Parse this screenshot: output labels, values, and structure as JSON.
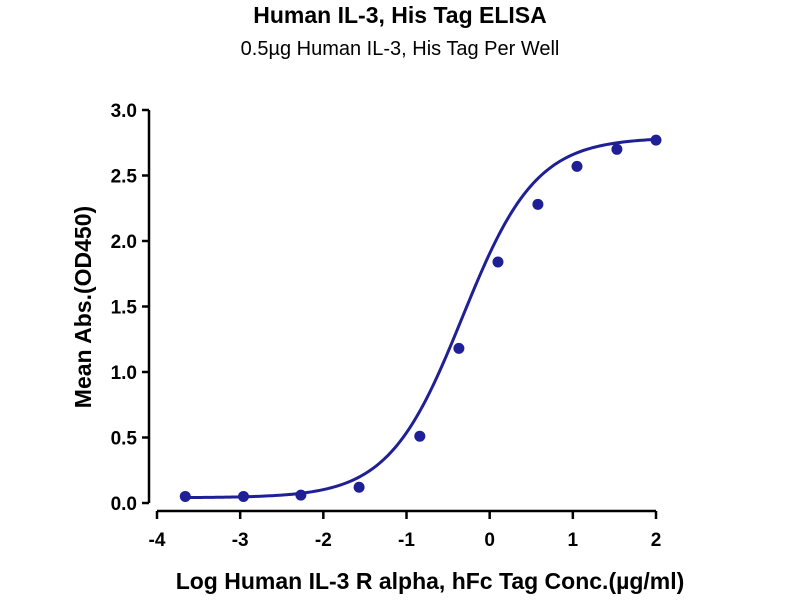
{
  "chart_data": {
    "type": "scatter",
    "title": "Human IL-3, His Tag ELISA",
    "subtitle": "0.5µg Human IL-3, His Tag Per Well",
    "xlabel": "Log Human IL-3 R alpha, hFc Tag Conc.(µg/ml)",
    "ylabel": "Mean Abs.(OD450)",
    "xlim": [
      -4,
      2
    ],
    "ylim": [
      0,
      3.0
    ],
    "xticks": [
      "-4",
      "-3",
      "-2",
      "-1",
      "0",
      "1",
      "2"
    ],
    "yticks": [
      "0.0",
      "0.5",
      "1.0",
      "1.5",
      "2.0",
      "2.5",
      "3.0"
    ],
    "grid": false,
    "fit": "sigmoidal (4PL)",
    "color": "#1f1f96",
    "series": [
      {
        "x": [
          -3.66,
          -2.96,
          -2.27,
          -1.57,
          -0.84,
          -0.37,
          0.1,
          0.58,
          1.05,
          1.53,
          2.0
        ],
        "y": [
          0.05,
          0.05,
          0.06,
          0.12,
          0.51,
          1.18,
          1.84,
          2.28,
          2.57,
          2.7,
          2.77
        ]
      }
    ]
  }
}
